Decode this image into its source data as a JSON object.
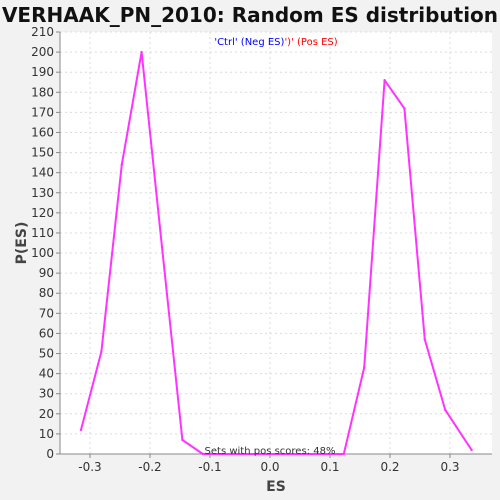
{
  "chart_data": {
    "type": "line",
    "title": "VERHAAK_PN_2010: Random ES distribution",
    "xlabel": "ES",
    "ylabel": "P(ES)",
    "xlim": [
      -0.35,
      0.37
    ],
    "ylim": [
      0,
      210
    ],
    "x_ticks": [
      -0.3,
      -0.2,
      -0.1,
      0.0,
      0.1,
      0.2,
      0.3
    ],
    "x_tick_labels": [
      "-0.3",
      "-0.2",
      "-0.1",
      "0.0",
      "0.1",
      "0.2",
      "0.3"
    ],
    "y_ticks": [
      0,
      10,
      20,
      30,
      40,
      50,
      60,
      70,
      80,
      90,
      100,
      110,
      120,
      130,
      140,
      150,
      160,
      170,
      180,
      190,
      200,
      210
    ],
    "y_tick_labels": [
      "0",
      "10",
      "20",
      "30",
      "40",
      "50",
      "60",
      "70",
      "80",
      "90",
      "100",
      "110",
      "120",
      "130",
      "140",
      "150",
      "160",
      "170",
      "180",
      "190",
      "200",
      "210"
    ],
    "grid": true,
    "legend": {
      "placement": "top-center",
      "entries": [
        {
          "text": "'Ctrl' (Neg ES)",
          "color": "#0000ff"
        },
        {
          "text": "')' (Pos ES)",
          "color": "#ff0000"
        }
      ]
    },
    "annotation": "Sets with pos scores: 48%",
    "series": [
      {
        "color": "#ff33ff",
        "x": [
          -0.315,
          -0.281,
          -0.247,
          -0.214,
          -0.18,
          -0.146,
          -0.112,
          -0.079,
          -0.045,
          -0.011,
          0.022,
          0.056,
          0.09,
          0.123,
          0.157,
          0.191,
          0.224,
          0.258,
          0.292,
          0.336
        ],
        "y": [
          12,
          51,
          144,
          200,
          103,
          7,
          0,
          0,
          0,
          0,
          0,
          0,
          0,
          0,
          43,
          186,
          172,
          57,
          22,
          2
        ]
      }
    ]
  }
}
